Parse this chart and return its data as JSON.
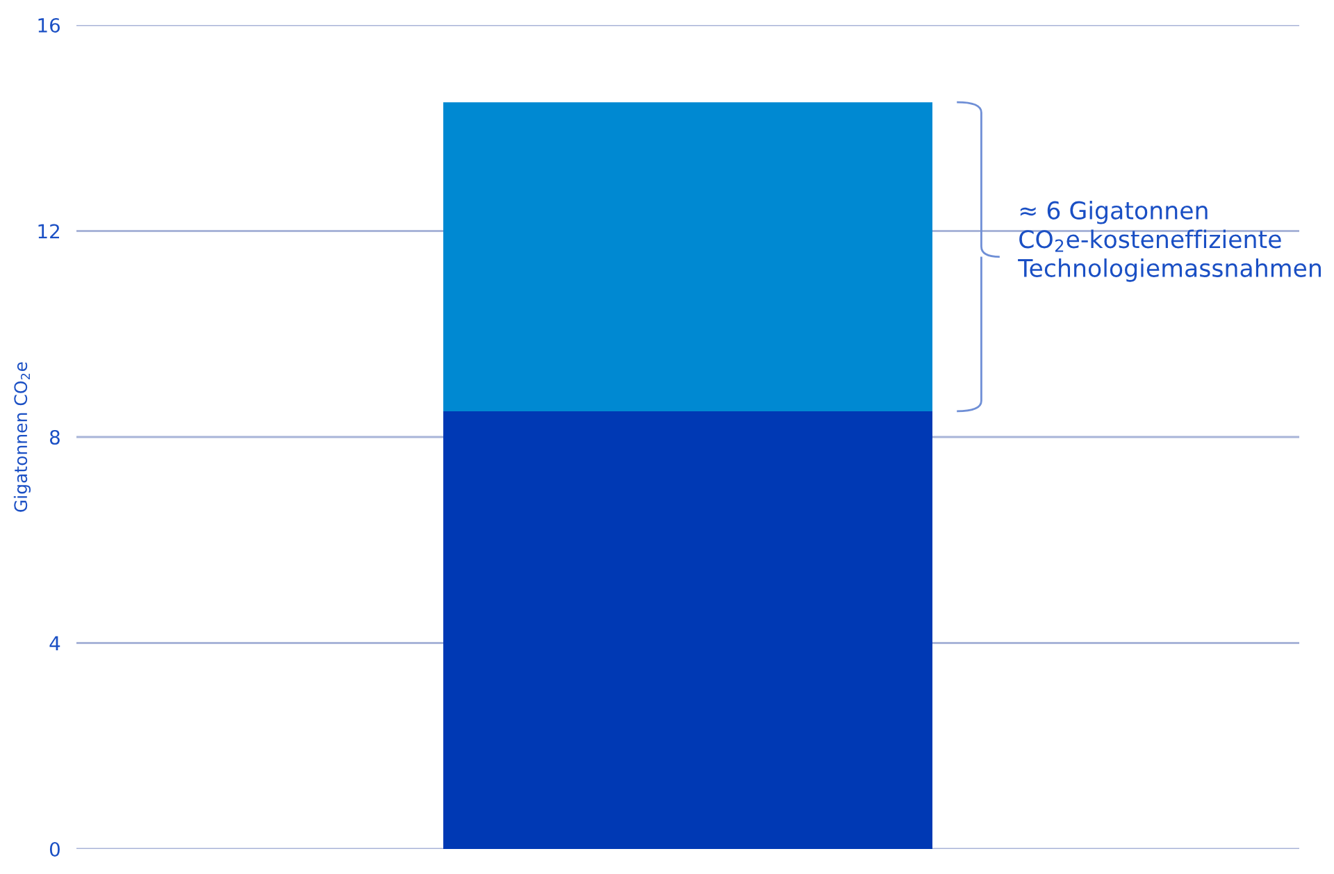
{
  "chart_data": {
    "type": "bar",
    "stacked": true,
    "categories": [
      null
    ],
    "series": [
      {
        "color": "#0039b4",
        "values": [
          8.5
        ]
      },
      {
        "color": "#0089d2",
        "values": [
          6.0
        ]
      }
    ],
    "ylabel": "Gigatonnen CO$_{2}$e",
    "ylim": [
      0,
      16
    ],
    "yticks": [
      0,
      4,
      8,
      12,
      16
    ],
    "grid": "y",
    "annotations": [
      "≈ 6 Gigatonnen\nCO$_{2}$e-kosteneffiziente\nTechnologiemassnahmen"
    ]
  }
}
